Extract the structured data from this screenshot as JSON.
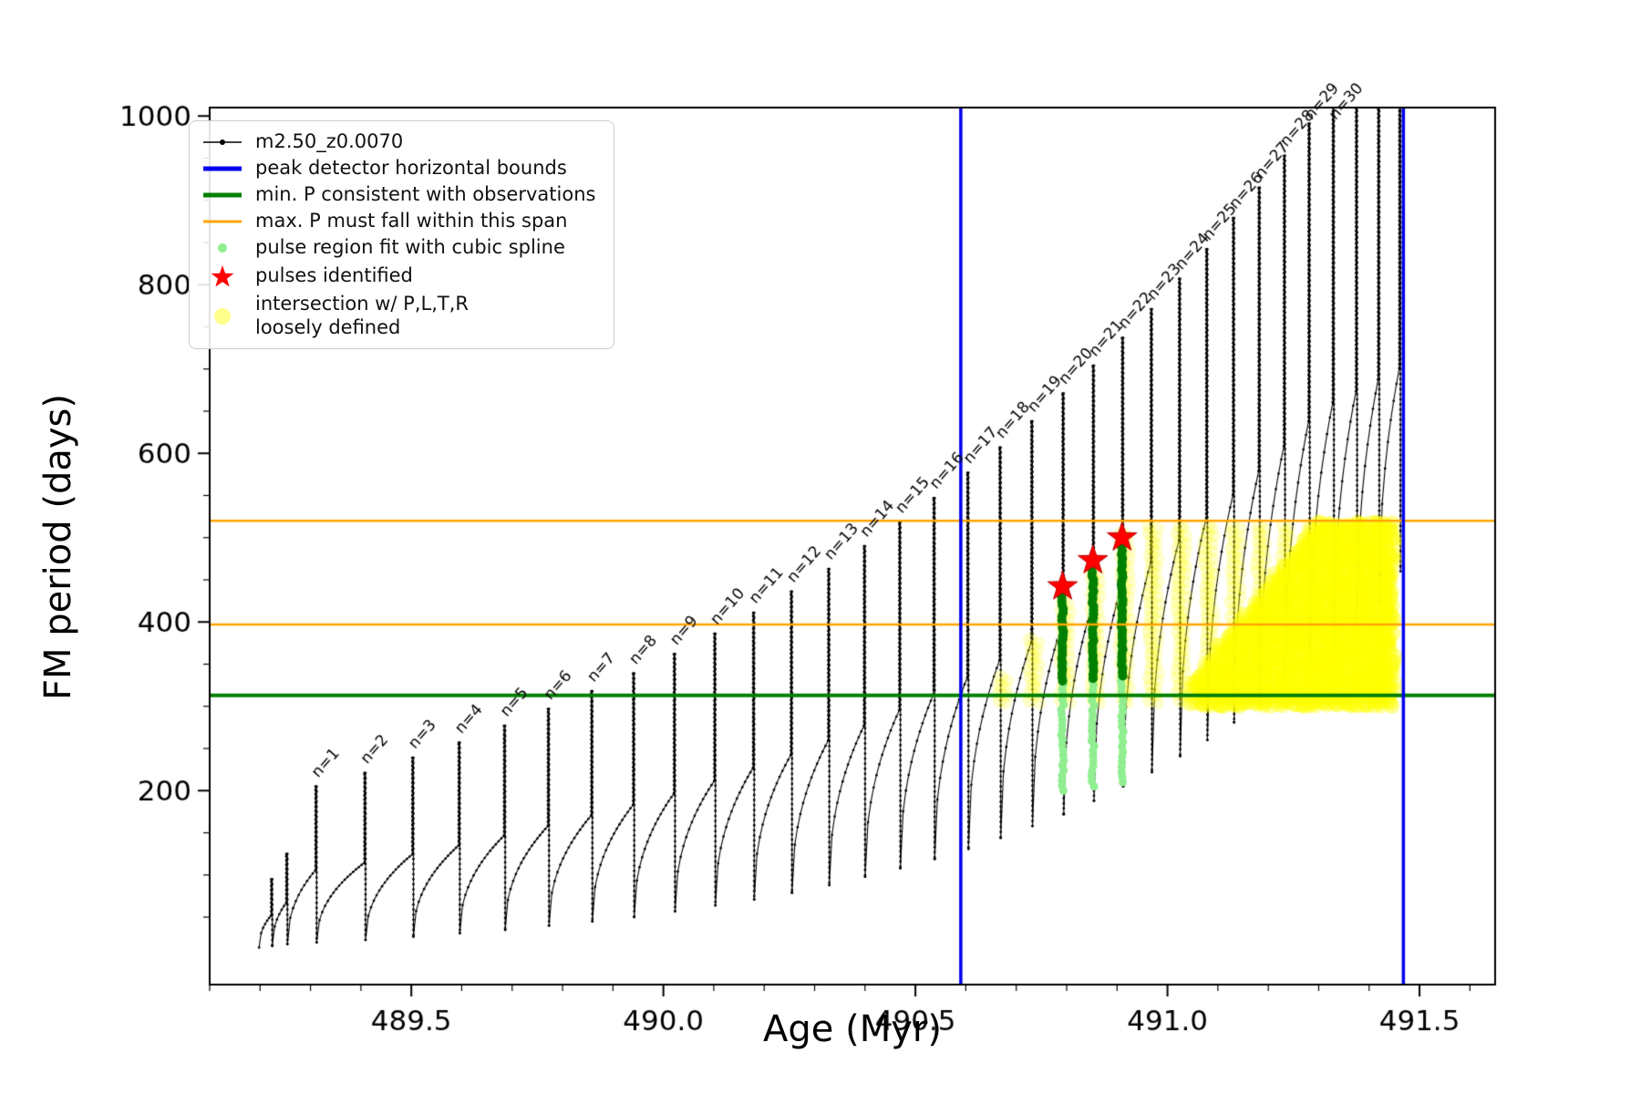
{
  "figure": {
    "background": "#ffffff"
  },
  "chart_data": {
    "type": "line",
    "axes": {
      "xlabel": "Age (Myr)",
      "ylabel": "FM period (days)",
      "xlim": [
        489.1,
        491.65
      ],
      "ylim": [
        -30,
        1010
      ],
      "xticks": [
        489.5,
        490.0,
        490.5,
        491.0,
        491.5
      ],
      "xtick_labels": [
        "489.5",
        "490.0",
        "490.5",
        "491.0",
        "491.5"
      ],
      "yticks": [
        200,
        400,
        600,
        800,
        1000
      ],
      "ytick_labels": [
        "200",
        "400",
        "600",
        "800",
        "1000"
      ],
      "x_minor_step": 0.1,
      "y_minor_step": 50
    },
    "legend": {
      "items": [
        {
          "marker": "line-dot",
          "color": "#000000",
          "label": "m2.50_z0.0070"
        },
        {
          "marker": "thick-line",
          "color": "#0000ee",
          "label": "peak detector horizontal bounds"
        },
        {
          "marker": "thick-line",
          "color": "#008000",
          "label": "min. P consistent with observations"
        },
        {
          "marker": "line",
          "color": "#ffa500",
          "label": "max. P must fall within this span"
        },
        {
          "marker": "dot",
          "color": "#90ee90",
          "label": "pulse region fit with cubic spline"
        },
        {
          "marker": "star",
          "color": "#ff0000",
          "label": "pulses identified"
        },
        {
          "marker": "big-dot",
          "color": "#ffff00",
          "label": "intersection w/ P,L,T,R\nloosely defined"
        }
      ]
    },
    "series": {
      "name": "m2.50_z0.0070",
      "color": "#000000",
      "x_start": 489.198,
      "end_value": 460,
      "pulses": [
        {
          "label": "",
          "age": 489.222,
          "peak": 95,
          "trough": 14
        },
        {
          "label": "",
          "age": 489.252,
          "peak": 125,
          "trough": 16
        },
        {
          "label": "n=1",
          "age": 489.31,
          "peak": 205,
          "trough": 18
        },
        {
          "label": "n=2",
          "age": 489.407,
          "peak": 221,
          "trough": 20
        },
        {
          "label": "n=3",
          "age": 489.502,
          "peak": 239,
          "trough": 23
        },
        {
          "label": "n=4",
          "age": 489.594,
          "peak": 257,
          "trough": 27
        },
        {
          "label": "n=5",
          "age": 489.684,
          "peak": 277,
          "trough": 31
        },
        {
          "label": "n=6",
          "age": 489.771,
          "peak": 297,
          "trough": 35
        },
        {
          "label": "n=7",
          "age": 489.857,
          "peak": 318,
          "trough": 40
        },
        {
          "label": "n=8",
          "age": 489.94,
          "peak": 339,
          "trough": 45
        },
        {
          "label": "n=9",
          "age": 490.021,
          "peak": 362,
          "trough": 50
        },
        {
          "label": "n=10",
          "age": 490.101,
          "peak": 386,
          "trough": 57
        },
        {
          "label": "n=11",
          "age": 490.178,
          "peak": 411,
          "trough": 64
        },
        {
          "label": "n=12",
          "age": 490.253,
          "peak": 436,
          "trough": 71
        },
        {
          "label": "n=13",
          "age": 490.327,
          "peak": 463,
          "trough": 79
        },
        {
          "label": "n=14",
          "age": 490.398,
          "peak": 490,
          "trough": 88
        },
        {
          "label": "n=15",
          "age": 490.468,
          "peak": 518,
          "trough": 98
        },
        {
          "label": "n=16",
          "age": 490.536,
          "peak": 547,
          "trough": 108
        },
        {
          "label": "n=17",
          "age": 490.603,
          "peak": 577,
          "trough": 119
        },
        {
          "label": "n=18",
          "age": 490.667,
          "peak": 607,
          "trough": 131
        },
        {
          "label": "n=19",
          "age": 490.73,
          "peak": 638,
          "trough": 144
        },
        {
          "label": "n=20",
          "age": 490.792,
          "peak": 671,
          "trough": 158
        },
        {
          "label": "n=21",
          "age": 490.852,
          "peak": 704,
          "trough": 172
        },
        {
          "label": "n=22",
          "age": 490.91,
          "peak": 737,
          "trough": 188
        },
        {
          "label": "n=23",
          "age": 490.967,
          "peak": 771,
          "trough": 205
        },
        {
          "label": "n=24",
          "age": 491.023,
          "peak": 807,
          "trough": 222
        },
        {
          "label": "n=25",
          "age": 491.077,
          "peak": 842,
          "trough": 241
        },
        {
          "label": "n=26",
          "age": 491.13,
          "peak": 879,
          "trough": 260
        },
        {
          "label": "n=27",
          "age": 491.181,
          "peak": 915,
          "trough": 281
        },
        {
          "label": "n=28",
          "age": 491.231,
          "peak": 953,
          "trough": 303
        },
        {
          "label": "n=29",
          "age": 491.28,
          "peak": 991,
          "trough": 325
        },
        {
          "label": "n=30",
          "age": 491.328,
          "peak": 1012,
          "trough": 349
        },
        {
          "label": "",
          "age": 491.374,
          "peak": 1012,
          "trough": 374
        },
        {
          "label": "",
          "age": 491.418,
          "peak": 1012,
          "trough": 400
        },
        {
          "label": "",
          "age": 491.46,
          "peak": 1012,
          "trough": 425
        }
      ]
    },
    "overlays": {
      "peak_detector_vlines": {
        "color": "#0000ee",
        "x": [
          490.59,
          491.468
        ]
      },
      "min_p_hline": {
        "color": "#008000",
        "y": 313
      },
      "max_p_span_hlines": {
        "color": "#ffa500",
        "y": [
          397,
          520
        ]
      },
      "pulse_region_columns": {
        "color": "#90ee90",
        "columns": [
          {
            "x": 490.792,
            "y0": 200,
            "y1": 430
          },
          {
            "x": 490.852,
            "y0": 205,
            "y1": 462
          },
          {
            "x": 490.91,
            "y0": 210,
            "y1": 490
          }
        ]
      },
      "spline_bars": {
        "color": "#008000",
        "bars": [
          {
            "x": 490.792,
            "y0": 330,
            "y1": 430
          },
          {
            "x": 490.852,
            "y0": 333,
            "y1": 462
          },
          {
            "x": 490.91,
            "y0": 336,
            "y1": 490
          }
        ]
      },
      "pulses_identified_stars": {
        "color": "#ff0000",
        "points": [
          {
            "x": 490.792,
            "y": 442
          },
          {
            "x": 490.852,
            "y": 473
          },
          {
            "x": 490.91,
            "y": 500
          }
        ]
      },
      "intersection_region": {
        "color": "#ffff00",
        "x0": 490.63,
        "x1": 491.45,
        "y0": 313,
        "y_top": 520,
        "ramp_x1": 490.93,
        "dense_x0": 491.05,
        "dense_full_x": 491.3
      }
    }
  }
}
